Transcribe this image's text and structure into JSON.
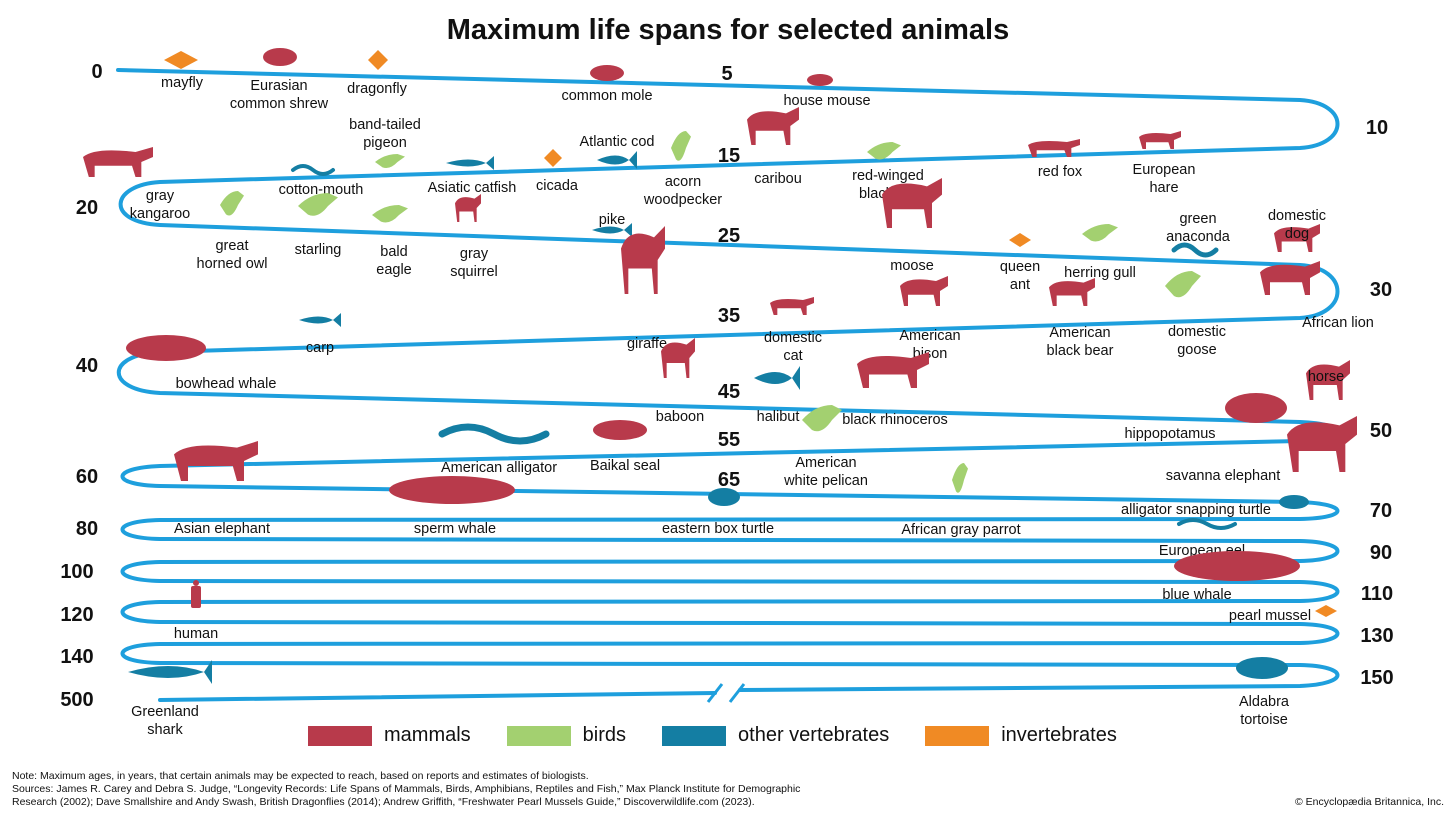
{
  "title": "Maximum life spans for selected animals",
  "colors": {
    "mammals": "#b83a4b",
    "birds": "#a3d070",
    "other_vertebrates": "#147ea3",
    "invertebrates": "#f08a24",
    "line": "#1e9fdd"
  },
  "legend": [
    {
      "label": "mammals",
      "color_key": "mammals"
    },
    {
      "label": "birds",
      "color_key": "birds"
    },
    {
      "label": "other vertebrates",
      "color_key": "other_vertebrates"
    },
    {
      "label": "invertebrates",
      "color_key": "invertebrates"
    }
  ],
  "scale_markers": [
    "0",
    "5",
    "10",
    "15",
    "20",
    "25",
    "30",
    "35",
    "40",
    "45",
    "50",
    "55",
    "60",
    "65",
    "70",
    "80",
    "90",
    "100",
    "110",
    "120",
    "130",
    "140",
    "150",
    "500"
  ],
  "animals": [
    {
      "name": "mayfly",
      "group": "invertebrates",
      "icon": "insect-icon"
    },
    {
      "name": "Eurasian common shrew",
      "group": "mammals",
      "icon": "shrew-icon"
    },
    {
      "name": "dragonfly",
      "group": "invertebrates",
      "icon": "dragonfly-icon"
    },
    {
      "name": "common mole",
      "group": "mammals",
      "icon": "mole-icon"
    },
    {
      "name": "house mouse",
      "group": "mammals",
      "icon": "mouse-icon"
    },
    {
      "name": "band-tailed pigeon",
      "group": "birds",
      "icon": "pigeon-icon"
    },
    {
      "name": "Atlantic cod",
      "group": "other_vertebrates",
      "icon": "fish-icon"
    },
    {
      "name": "cotton-mouth",
      "group": "other_vertebrates",
      "icon": "snake-icon"
    },
    {
      "name": "Asiatic catfish",
      "group": "other_vertebrates",
      "icon": "catfish-icon"
    },
    {
      "name": "cicada",
      "group": "invertebrates",
      "icon": "cicada-icon"
    },
    {
      "name": "acorn woodpecker",
      "group": "birds",
      "icon": "woodpecker-icon"
    },
    {
      "name": "caribou",
      "group": "mammals",
      "icon": "caribou-icon"
    },
    {
      "name": "red-winged blackbird",
      "group": "birds",
      "icon": "bird-icon"
    },
    {
      "name": "red fox",
      "group": "mammals",
      "icon": "fox-icon"
    },
    {
      "name": "European hare",
      "group": "mammals",
      "icon": "hare-icon"
    },
    {
      "name": "gray kangaroo",
      "group": "mammals",
      "icon": "kangaroo-icon"
    },
    {
      "name": "great horned owl",
      "group": "birds",
      "icon": "owl-icon"
    },
    {
      "name": "starling",
      "group": "birds",
      "icon": "starling-icon"
    },
    {
      "name": "bald eagle",
      "group": "birds",
      "icon": "eagle-icon"
    },
    {
      "name": "gray squirrel",
      "group": "mammals",
      "icon": "squirrel-icon"
    },
    {
      "name": "pike",
      "group": "other_vertebrates",
      "icon": "pike-icon"
    },
    {
      "name": "moose",
      "group": "mammals",
      "icon": "moose-icon"
    },
    {
      "name": "queen ant",
      "group": "invertebrates",
      "icon": "ant-icon"
    },
    {
      "name": "herring gull",
      "group": "birds",
      "icon": "gull-icon"
    },
    {
      "name": "green anaconda",
      "group": "other_vertebrates",
      "icon": "snake-icon"
    },
    {
      "name": "domestic dog",
      "group": "mammals",
      "icon": "dog-icon"
    },
    {
      "name": "carp",
      "group": "other_vertebrates",
      "icon": "fish-icon"
    },
    {
      "name": "giraffe",
      "group": "mammals",
      "icon": "giraffe-icon"
    },
    {
      "name": "domestic cat",
      "group": "mammals",
      "icon": "cat-icon"
    },
    {
      "name": "American bison",
      "group": "mammals",
      "icon": "bison-icon"
    },
    {
      "name": "American black bear",
      "group": "mammals",
      "icon": "bear-icon"
    },
    {
      "name": "domestic goose",
      "group": "birds",
      "icon": "goose-icon"
    },
    {
      "name": "African lion",
      "group": "mammals",
      "icon": "lion-icon"
    },
    {
      "name": "bowhead whale",
      "group": "mammals",
      "icon": "whale-icon"
    },
    {
      "name": "baboon",
      "group": "mammals",
      "icon": "baboon-icon"
    },
    {
      "name": "halibut",
      "group": "other_vertebrates",
      "icon": "fish-icon"
    },
    {
      "name": "black rhinoceros",
      "group": "mammals",
      "icon": "rhino-icon"
    },
    {
      "name": "horse",
      "group": "mammals",
      "icon": "horse-icon"
    },
    {
      "name": "hippopotamus",
      "group": "mammals",
      "icon": "hippo-icon"
    },
    {
      "name": "American alligator",
      "group": "other_vertebrates",
      "icon": "alligator-icon"
    },
    {
      "name": "Baikal seal",
      "group": "mammals",
      "icon": "seal-icon"
    },
    {
      "name": "American white pelican",
      "group": "birds",
      "icon": "pelican-icon"
    },
    {
      "name": "savanna elephant",
      "group": "mammals",
      "icon": "elephant-icon"
    },
    {
      "name": "Asian elephant",
      "group": "mammals",
      "icon": "elephant-icon"
    },
    {
      "name": "sperm whale",
      "group": "mammals",
      "icon": "whale-icon"
    },
    {
      "name": "eastern box turtle",
      "group": "other_vertebrates",
      "icon": "turtle-icon"
    },
    {
      "name": "African gray parrot",
      "group": "birds",
      "icon": "parrot-icon"
    },
    {
      "name": "alligator snapping turtle",
      "group": "other_vertebrates",
      "icon": "turtle-icon"
    },
    {
      "name": "European eel",
      "group": "other_vertebrates",
      "icon": "eel-icon"
    },
    {
      "name": "blue whale",
      "group": "mammals",
      "icon": "whale-icon"
    },
    {
      "name": "human",
      "group": "mammals",
      "icon": "human-icon"
    },
    {
      "name": "pearl mussel",
      "group": "invertebrates",
      "icon": "mussel-icon"
    },
    {
      "name": "Greenland shark",
      "group": "other_vertebrates",
      "icon": "shark-icon"
    },
    {
      "name": "Aldabra tortoise",
      "group": "other_vertebrates",
      "icon": "tortoise-icon"
    }
  ],
  "note": [
    "Note: Maximum ages, in years, that certain animals may be expected to reach, based on reports and estimates of biologists.",
    "Sources: James R. Carey and Debra S. Judge, “Longevity Records: Life Spans of Mammals, Birds, Amphibians, Reptiles and Fish,” Max Planck Institute for Demographic",
    "Research (2002); Dave Smallshire and Andy Swash, British Dragonflies (2014); Andrew Griffith, “Freshwater Pearl Mussels Guide,” Discoverwildlife.com (2023)."
  ],
  "copyright": "© Encyclopædia Britannica, Inc."
}
